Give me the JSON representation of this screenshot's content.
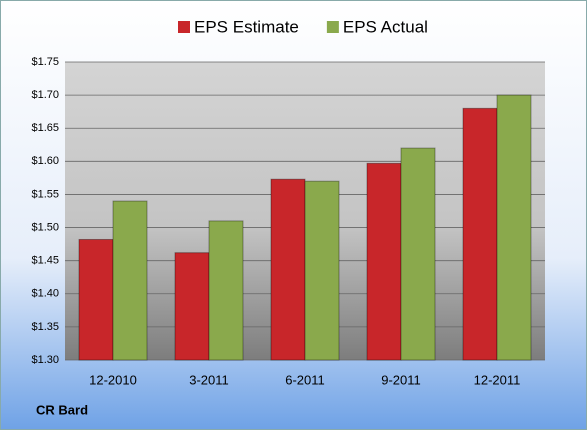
{
  "chart_data": {
    "type": "bar",
    "categories": [
      "12-2010",
      "3-2011",
      "6-2011",
      "9-2011",
      "12-2011"
    ],
    "series": [
      {
        "name": "EPS Estimate",
        "color": "#c8262a",
        "values": [
          1.482,
          1.462,
          1.573,
          1.597,
          1.68
        ]
      },
      {
        "name": "EPS Actual",
        "color": "#8aa94c",
        "values": [
          1.54,
          1.51,
          1.57,
          1.62,
          1.7
        ]
      }
    ],
    "ylim": [
      1.3,
      1.75
    ],
    "yticks": [
      {
        "value": 1.3,
        "label": "$1.30"
      },
      {
        "value": 1.35,
        "label": "$1.35"
      },
      {
        "value": 1.4,
        "label": "$1.40"
      },
      {
        "value": 1.45,
        "label": "$1.45"
      },
      {
        "value": 1.5,
        "label": "$1.50"
      },
      {
        "value": 1.55,
        "label": "$1.55"
      },
      {
        "value": 1.6,
        "label": "$1.60"
      },
      {
        "value": 1.65,
        "label": "$1.65"
      },
      {
        "value": 1.7,
        "label": "$1.70"
      },
      {
        "value": 1.75,
        "label": "$1.75"
      }
    ],
    "grid": true,
    "legend": "top",
    "annotation": "CR Bard"
  }
}
